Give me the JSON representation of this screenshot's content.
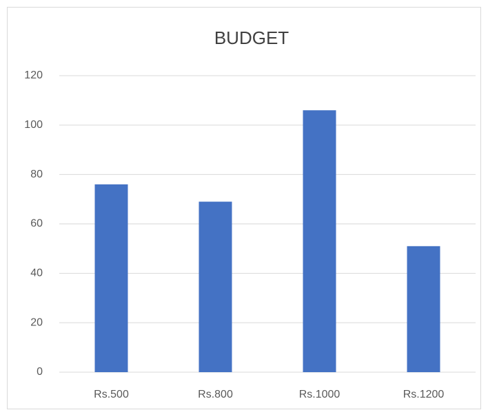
{
  "chart_data": {
    "type": "bar",
    "title": "BUDGET",
    "categories": [
      "Rs.500",
      "Rs.800",
      "Rs.1000",
      "Rs.1200"
    ],
    "values": [
      76,
      69,
      106,
      51
    ],
    "color": "#4472c4",
    "ylim": [
      0,
      120
    ],
    "yticks": [
      0,
      20,
      40,
      60,
      80,
      100,
      120
    ],
    "grid": true
  }
}
